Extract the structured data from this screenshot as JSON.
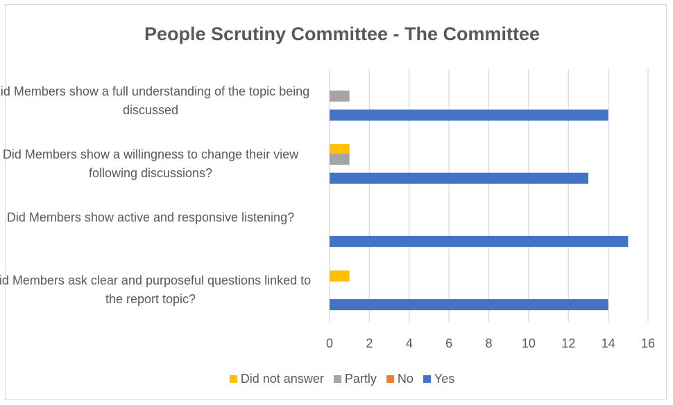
{
  "chart_data": {
    "type": "bar",
    "orientation": "horizontal",
    "title": "People Scrutiny Committee - The Committee",
    "categories": [
      "Did Members show a full understanding of the topic being discussed",
      "Did Members show a willingness to change their view following discussions?",
      "Did Members show active and responsive listening?",
      "Did Members ask clear and purposeful questions linked to the report topic?"
    ],
    "series": [
      {
        "name": "Did not answer",
        "color": "#ffc000",
        "values": [
          0,
          1,
          0,
          1
        ]
      },
      {
        "name": "Partly",
        "color": "#a5a5a5",
        "values": [
          1,
          1,
          0,
          0
        ]
      },
      {
        "name": "No",
        "color": "#ed7d31",
        "values": [
          0,
          0,
          0,
          0
        ]
      },
      {
        "name": "Yes",
        "color": "#4472c4",
        "values": [
          14,
          13,
          15,
          14
        ]
      }
    ],
    "xlim": [
      0,
      16
    ],
    "xticks": [
      "0",
      "2",
      "4",
      "6",
      "8",
      "10",
      "12",
      "14",
      "16"
    ],
    "grid": true,
    "legend_position": "bottom"
  }
}
